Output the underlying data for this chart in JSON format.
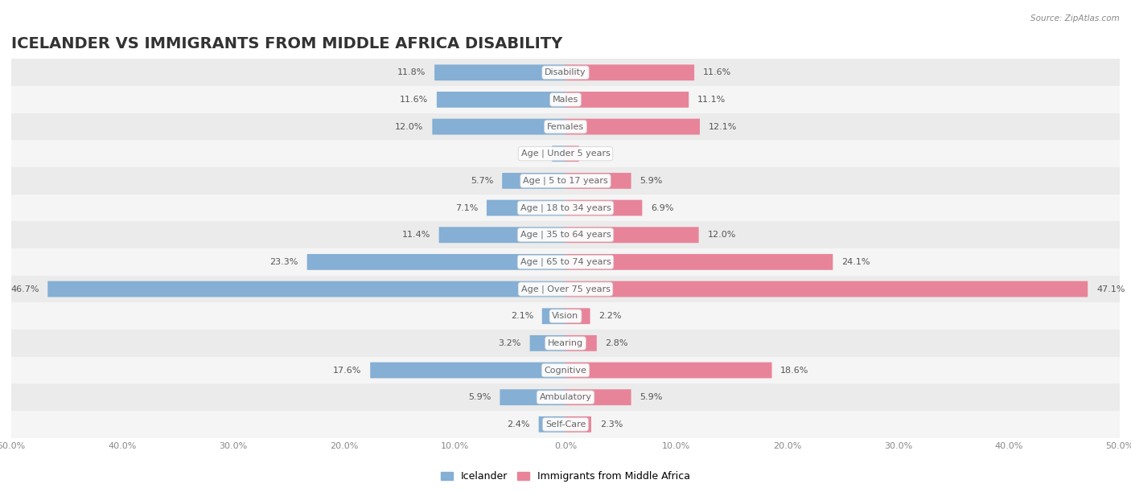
{
  "title": "ICELANDER VS IMMIGRANTS FROM MIDDLE AFRICA DISABILITY",
  "source": "Source: ZipAtlas.com",
  "categories": [
    "Disability",
    "Males",
    "Females",
    "Age | Under 5 years",
    "Age | 5 to 17 years",
    "Age | 18 to 34 years",
    "Age | 35 to 64 years",
    "Age | 65 to 74 years",
    "Age | Over 75 years",
    "Vision",
    "Hearing",
    "Cognitive",
    "Ambulatory",
    "Self-Care"
  ],
  "icelander": [
    11.8,
    11.6,
    12.0,
    1.2,
    5.7,
    7.1,
    11.4,
    23.3,
    46.7,
    2.1,
    3.2,
    17.6,
    5.9,
    2.4
  ],
  "immigrants": [
    11.6,
    11.1,
    12.1,
    1.2,
    5.9,
    6.9,
    12.0,
    24.1,
    47.1,
    2.2,
    2.8,
    18.6,
    5.9,
    2.3
  ],
  "icelander_color": "#85afd4",
  "immigrants_color": "#e8849a",
  "max_value": 50.0,
  "background_color": "#ffffff",
  "row_alt_color": "#ebebeb",
  "row_main_color": "#f5f5f5",
  "title_fontsize": 14,
  "label_fontsize": 8,
  "tick_fontsize": 8,
  "bar_height": 0.55,
  "legend_label_icelander": "Icelander",
  "legend_label_immigrants": "Immigrants from Middle Africa"
}
